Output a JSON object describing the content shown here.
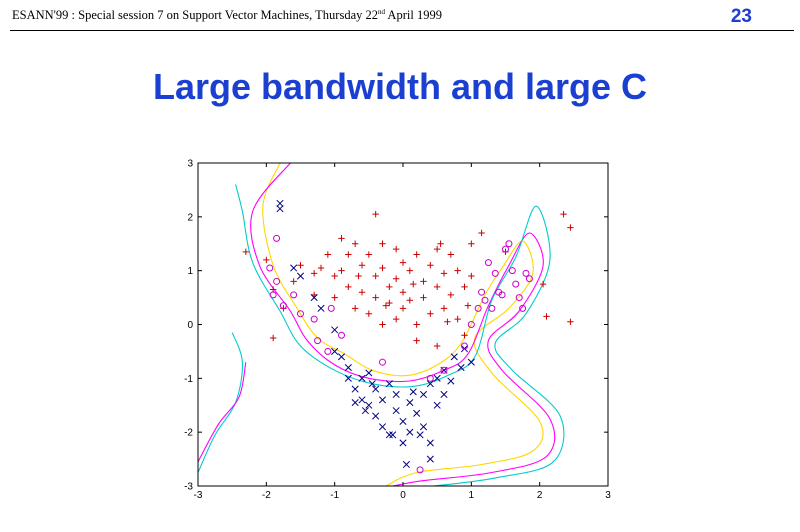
{
  "header": {
    "left_prefix": "ESANN'99 :  Special session 7 on Support Vector Machines, Thursday 22",
    "left_sup": "nd",
    "left_suffix": " April 1999",
    "page_number": "23"
  },
  "slide": {
    "title": "Large bandwidth  and  large C"
  },
  "chart_data": {
    "type": "scatter",
    "title": "",
    "xlabel": "",
    "ylabel": "",
    "xlim": [
      -3,
      3
    ],
    "ylim": [
      -3,
      3
    ],
    "xticks": [
      "-3",
      "-2",
      "-1",
      "0",
      "1",
      "2",
      "3"
    ],
    "yticks": [
      "3",
      "2",
      "1",
      "0",
      "-1",
      "-2",
      "-3"
    ],
    "grid": false,
    "series": [
      {
        "marker": "+",
        "color": "#cc0000",
        "points": [
          [
            -2.3,
            1.35
          ],
          [
            -2.0,
            1.2
          ],
          [
            -1.9,
            0.65
          ],
          [
            -1.75,
            0.3
          ],
          [
            -1.5,
            1.1
          ],
          [
            -1.3,
            0.95
          ],
          [
            -1.3,
            0.55
          ],
          [
            -1.1,
            1.3
          ],
          [
            -1.0,
            0.9
          ],
          [
            -1.0,
            0.5
          ],
          [
            -0.9,
            1.0
          ],
          [
            -0.8,
            1.3
          ],
          [
            -0.8,
            0.7
          ],
          [
            -0.7,
            1.5
          ],
          [
            -0.7,
            0.3
          ],
          [
            -0.6,
            1.1
          ],
          [
            -0.6,
            0.6
          ],
          [
            -0.5,
            1.3
          ],
          [
            -0.5,
            0.2
          ],
          [
            -0.4,
            0.9
          ],
          [
            -0.4,
            0.5
          ],
          [
            -0.3,
            1.5
          ],
          [
            -0.3,
            1.05
          ],
          [
            -0.3,
            0.0
          ],
          [
            -0.2,
            0.7
          ],
          [
            -0.2,
            0.4
          ],
          [
            -0.1,
            1.4
          ],
          [
            -0.1,
            0.85
          ],
          [
            -0.1,
            0.1
          ],
          [
            0.0,
            1.15
          ],
          [
            0.0,
            0.6
          ],
          [
            0.0,
            0.3
          ],
          [
            0.1,
            1.0
          ],
          [
            0.1,
            0.45
          ],
          [
            0.2,
            1.3
          ],
          [
            0.2,
            0.0
          ],
          [
            0.2,
            -0.3
          ],
          [
            0.3,
            0.8
          ],
          [
            0.3,
            0.5
          ],
          [
            0.4,
            1.1
          ],
          [
            0.4,
            0.2
          ],
          [
            0.5,
            1.4
          ],
          [
            0.5,
            0.7
          ],
          [
            0.5,
            -0.4
          ],
          [
            0.6,
            0.95
          ],
          [
            0.6,
            0.3
          ],
          [
            0.7,
            1.3
          ],
          [
            0.7,
            0.55
          ],
          [
            0.8,
            0.1
          ],
          [
            0.8,
            1.0
          ],
          [
            0.9,
            0.7
          ],
          [
            0.9,
            -0.2
          ],
          [
            1.0,
            1.5
          ],
          [
            1.0,
            0.9
          ],
          [
            -0.4,
            2.05
          ],
          [
            -0.9,
            1.6
          ],
          [
            0.55,
            1.5
          ],
          [
            1.15,
            1.7
          ],
          [
            1.5,
            1.35
          ],
          [
            2.05,
            0.75
          ],
          [
            2.1,
            0.15
          ],
          [
            2.35,
            2.05
          ],
          [
            2.45,
            1.8
          ],
          [
            2.45,
            0.05
          ],
          [
            -1.9,
            -0.25
          ],
          [
            -1.6,
            0.8
          ],
          [
            -1.2,
            1.05
          ],
          [
            -0.65,
            0.9
          ],
          [
            -0.25,
            0.35
          ],
          [
            0.15,
            0.75
          ],
          [
            0.65,
            0.05
          ],
          [
            0.95,
            0.35
          ]
        ]
      },
      {
        "marker": "x",
        "color": "#000080",
        "points": [
          [
            -1.8,
            2.25
          ],
          [
            -1.8,
            2.15
          ],
          [
            -1.6,
            1.05
          ],
          [
            -1.5,
            0.9
          ],
          [
            -1.3,
            0.5
          ],
          [
            -1.2,
            0.3
          ],
          [
            -1.0,
            -0.1
          ],
          [
            -1.0,
            -0.5
          ],
          [
            -0.9,
            -0.6
          ],
          [
            -0.8,
            -0.8
          ],
          [
            -0.8,
            -1.0
          ],
          [
            -0.7,
            -1.2
          ],
          [
            -0.6,
            -1.0
          ],
          [
            -0.6,
            -1.4
          ],
          [
            -0.5,
            -0.9
          ],
          [
            -0.5,
            -1.5
          ],
          [
            -0.4,
            -1.2
          ],
          [
            -0.4,
            -1.7
          ],
          [
            -0.3,
            -1.4
          ],
          [
            -0.3,
            -1.9
          ],
          [
            -0.2,
            -1.1
          ],
          [
            -0.2,
            -2.05
          ],
          [
            -0.1,
            -1.6
          ],
          [
            -0.1,
            -1.3
          ],
          [
            0.0,
            -1.8
          ],
          [
            0.0,
            -2.2
          ],
          [
            0.1,
            -1.45
          ],
          [
            0.1,
            -2.0
          ],
          [
            0.2,
            -1.65
          ],
          [
            0.3,
            -1.3
          ],
          [
            0.3,
            -1.9
          ],
          [
            0.4,
            -1.1
          ],
          [
            0.4,
            -2.2
          ],
          [
            0.5,
            -1.5
          ],
          [
            0.5,
            -1.0
          ],
          [
            0.6,
            -1.3
          ],
          [
            0.6,
            -0.85
          ],
          [
            0.7,
            -1.05
          ],
          [
            0.75,
            -0.6
          ],
          [
            0.85,
            -0.8
          ],
          [
            0.9,
            -0.45
          ],
          [
            1.0,
            -0.7
          ],
          [
            0.05,
            -2.6
          ],
          [
            0.4,
            -2.5
          ],
          [
            -0.55,
            -1.6
          ],
          [
            -0.15,
            -2.05
          ],
          [
            0.25,
            -2.05
          ],
          [
            -0.7,
            -1.45
          ],
          [
            -0.45,
            -1.1
          ],
          [
            0.15,
            -1.25
          ]
        ]
      },
      {
        "marker": "o",
        "color": "#cc00cc",
        "points": [
          [
            -1.85,
            1.6
          ],
          [
            -1.95,
            1.05
          ],
          [
            -1.85,
            0.8
          ],
          [
            -1.9,
            0.55
          ],
          [
            -1.75,
            0.35
          ],
          [
            -1.6,
            0.55
          ],
          [
            -1.5,
            0.2
          ],
          [
            -1.3,
            0.1
          ],
          [
            -1.25,
            -0.3
          ],
          [
            -1.1,
            -0.5
          ],
          [
            -1.05,
            0.3
          ],
          [
            -0.9,
            -0.2
          ],
          [
            -0.3,
            -0.7
          ],
          [
            0.4,
            -1.0
          ],
          [
            0.6,
            -0.85
          ],
          [
            0.9,
            -0.4
          ],
          [
            1.0,
            0.0
          ],
          [
            1.1,
            0.3
          ],
          [
            1.15,
            0.6
          ],
          [
            1.25,
            1.15
          ],
          [
            1.35,
            0.95
          ],
          [
            1.4,
            0.6
          ],
          [
            1.5,
            1.4
          ],
          [
            1.55,
            1.5
          ],
          [
            1.6,
            1.0
          ],
          [
            1.65,
            0.75
          ],
          [
            1.7,
            0.5
          ],
          [
            1.75,
            0.3
          ],
          [
            1.8,
            0.95
          ],
          [
            1.85,
            0.85
          ],
          [
            1.3,
            0.3
          ],
          [
            1.2,
            0.45
          ],
          [
            1.45,
            0.55
          ],
          [
            0.25,
            -2.7
          ]
        ]
      }
    ],
    "contours": [
      {
        "name": "",
        "color": "#ffd700",
        "points": [
          [
            -1.8,
            3.0
          ],
          [
            -2.05,
            2.2
          ],
          [
            -1.9,
            1.1
          ],
          [
            -1.55,
            0.3
          ],
          [
            -1.25,
            -0.25
          ],
          [
            -0.85,
            -0.55
          ],
          [
            -0.45,
            -0.85
          ],
          [
            0.05,
            -0.95
          ],
          [
            0.5,
            -0.75
          ],
          [
            0.85,
            -0.35
          ],
          [
            1.2,
            0.55
          ],
          [
            1.45,
            1.05
          ],
          [
            1.75,
            1.55
          ],
          [
            1.9,
            0.95
          ],
          [
            1.55,
            0.3
          ],
          [
            1.05,
            -0.25
          ],
          [
            1.3,
            -0.9
          ],
          [
            2.0,
            -1.8
          ],
          [
            1.9,
            -2.35
          ],
          [
            1.15,
            -2.6
          ],
          [
            0.2,
            -2.75
          ],
          [
            -0.25,
            -3.0
          ]
        ]
      },
      {
        "name": "",
        "color": "#ff00ff",
        "points": [
          [
            -1.65,
            3.0
          ],
          [
            -2.2,
            2.1
          ],
          [
            -2.1,
            1.1
          ],
          [
            -1.65,
            0.25
          ],
          [
            -1.4,
            -0.3
          ],
          [
            -1.0,
            -0.75
          ],
          [
            -0.5,
            -1.0
          ],
          [
            0.1,
            -1.05
          ],
          [
            0.6,
            -0.85
          ],
          [
            0.95,
            -0.55
          ],
          [
            1.25,
            0.35
          ],
          [
            1.55,
            1.1
          ],
          [
            1.85,
            1.7
          ],
          [
            2.05,
            1.1
          ],
          [
            1.7,
            0.25
          ],
          [
            1.25,
            -0.3
          ],
          [
            1.45,
            -0.85
          ],
          [
            2.15,
            -1.75
          ],
          [
            2.1,
            -2.45
          ],
          [
            1.3,
            -2.75
          ],
          [
            0.3,
            -2.9
          ],
          [
            -0.15,
            -3.0
          ]
        ]
      },
      {
        "name": "",
        "color": "#00cccc",
        "points": [
          [
            -2.45,
            2.6
          ],
          [
            -2.35,
            2.1
          ],
          [
            -2.2,
            1.15
          ],
          [
            -1.8,
            0.25
          ],
          [
            -1.5,
            -0.4
          ],
          [
            -1.0,
            -0.85
          ],
          [
            -0.45,
            -1.1
          ],
          [
            0.15,
            -1.15
          ],
          [
            0.65,
            -0.95
          ],
          [
            1.05,
            -0.6
          ],
          [
            1.3,
            0.45
          ],
          [
            1.65,
            1.25
          ],
          [
            1.95,
            2.2
          ],
          [
            2.15,
            1.2
          ],
          [
            1.8,
            0.2
          ],
          [
            1.35,
            -0.35
          ],
          [
            1.6,
            -0.85
          ],
          [
            2.3,
            -1.7
          ],
          [
            2.2,
            -2.55
          ],
          [
            1.35,
            -2.85
          ],
          [
            0.45,
            -3.0
          ]
        ]
      },
      {
        "name": "",
        "color": "#00cccc",
        "points": [
          [
            -3.0,
            -2.75
          ],
          [
            -2.75,
            -2.05
          ],
          [
            -2.45,
            -1.45
          ],
          [
            -2.35,
            -0.7
          ],
          [
            -2.5,
            -0.15
          ]
        ]
      },
      {
        "name": "",
        "color": "#ff00ff",
        "points": [
          [
            -3.0,
            -2.55
          ],
          [
            -2.7,
            -1.85
          ],
          [
            -2.4,
            -1.35
          ],
          [
            -2.3,
            -0.7
          ]
        ]
      }
    ]
  }
}
